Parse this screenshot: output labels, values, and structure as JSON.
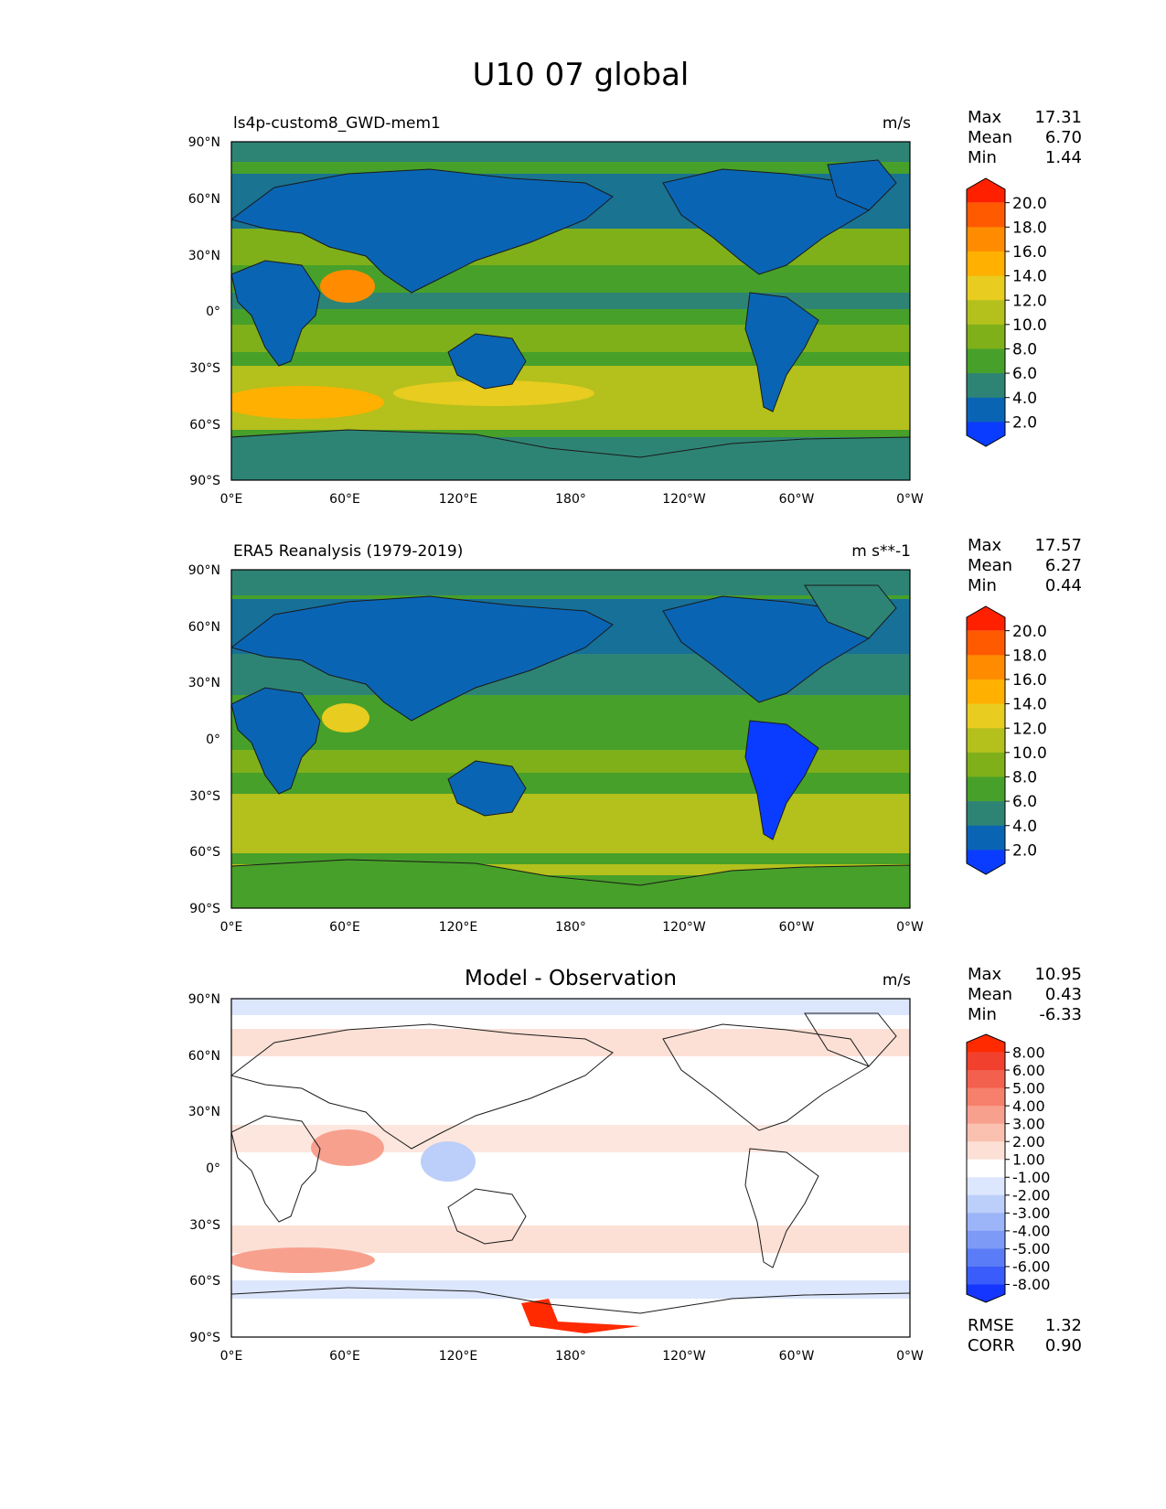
{
  "figure": {
    "title": "U10 07 global"
  },
  "map": {
    "lat_ticks": [
      "90°N",
      "60°N",
      "30°N",
      "0°",
      "30°S",
      "60°S",
      "90°S"
    ],
    "lon_ticks": [
      "0°E",
      "60°E",
      "120°E",
      "180°",
      "120°W",
      "60°W",
      "0°W"
    ]
  },
  "chart_data": [
    {
      "type": "heatmap",
      "title": "ls4p-custom8_GWD-mem1",
      "units": "m/s",
      "stats": {
        "max_label": "Max",
        "max": "17.31",
        "mean_label": "Mean",
        "mean": "6.70",
        "min_label": "Min",
        "min": "1.44"
      },
      "colorbar": {
        "labels": [
          "20.0",
          "18.0",
          "16.0",
          "14.0",
          "12.0",
          "10.0",
          "8.0",
          "6.0",
          "4.0",
          "2.0"
        ],
        "colors": [
          "#ff2000",
          "#ff5a00",
          "#ff8c00",
          "#ffb000",
          "#e8cc20",
          "#b4c01c",
          "#7fb01a",
          "#47a02a",
          "#2e8474",
          "#0a64b4",
          "#0a3cff"
        ]
      },
      "xlim": [
        0,
        360
      ],
      "ylim": [
        -90,
        90
      ]
    },
    {
      "type": "heatmap",
      "title": "ERA5 Reanalysis (1979-2019)",
      "units": "m s**-1",
      "stats": {
        "max_label": "Max",
        "max": "17.57",
        "mean_label": "Mean",
        "mean": "6.27",
        "min_label": "Min",
        "min": "0.44"
      },
      "colorbar": {
        "labels": [
          "20.0",
          "18.0",
          "16.0",
          "14.0",
          "12.0",
          "10.0",
          "8.0",
          "6.0",
          "4.0",
          "2.0"
        ],
        "colors": [
          "#ff2000",
          "#ff5a00",
          "#ff8c00",
          "#ffb000",
          "#e8cc20",
          "#b4c01c",
          "#7fb01a",
          "#47a02a",
          "#2e8474",
          "#0a64b4",
          "#0a3cff"
        ]
      },
      "xlim": [
        0,
        360
      ],
      "ylim": [
        -90,
        90
      ]
    },
    {
      "type": "heatmap",
      "title": "Model - Observation",
      "units": "m/s",
      "stats": {
        "max_label": "Max",
        "max": "10.95",
        "mean_label": "Mean",
        "mean": "0.43",
        "min_label": "Min",
        "min": "-6.33",
        "rmse_label": "RMSE",
        "rmse": "1.32",
        "corr_label": "CORR",
        "corr": "0.90"
      },
      "colorbar": {
        "labels": [
          "8.00",
          "6.00",
          "5.00",
          "4.00",
          "3.00",
          "2.00",
          "1.00",
          "-1.00",
          "-2.00",
          "-3.00",
          "-4.00",
          "-5.00",
          "-6.00",
          "-8.00"
        ],
        "colors": [
          "#ff2a00",
          "#f2402e",
          "#f4604e",
          "#f6806c",
          "#f8a08e",
          "#fac0b0",
          "#fce0d6",
          "#ffffff",
          "#dce6fc",
          "#bccefa",
          "#9cb4f8",
          "#7c9af6",
          "#5a7cf6",
          "#3a5cfa",
          "#1436ff"
        ]
      },
      "xlim": [
        0,
        360
      ],
      "ylim": [
        -90,
        90
      ]
    }
  ]
}
